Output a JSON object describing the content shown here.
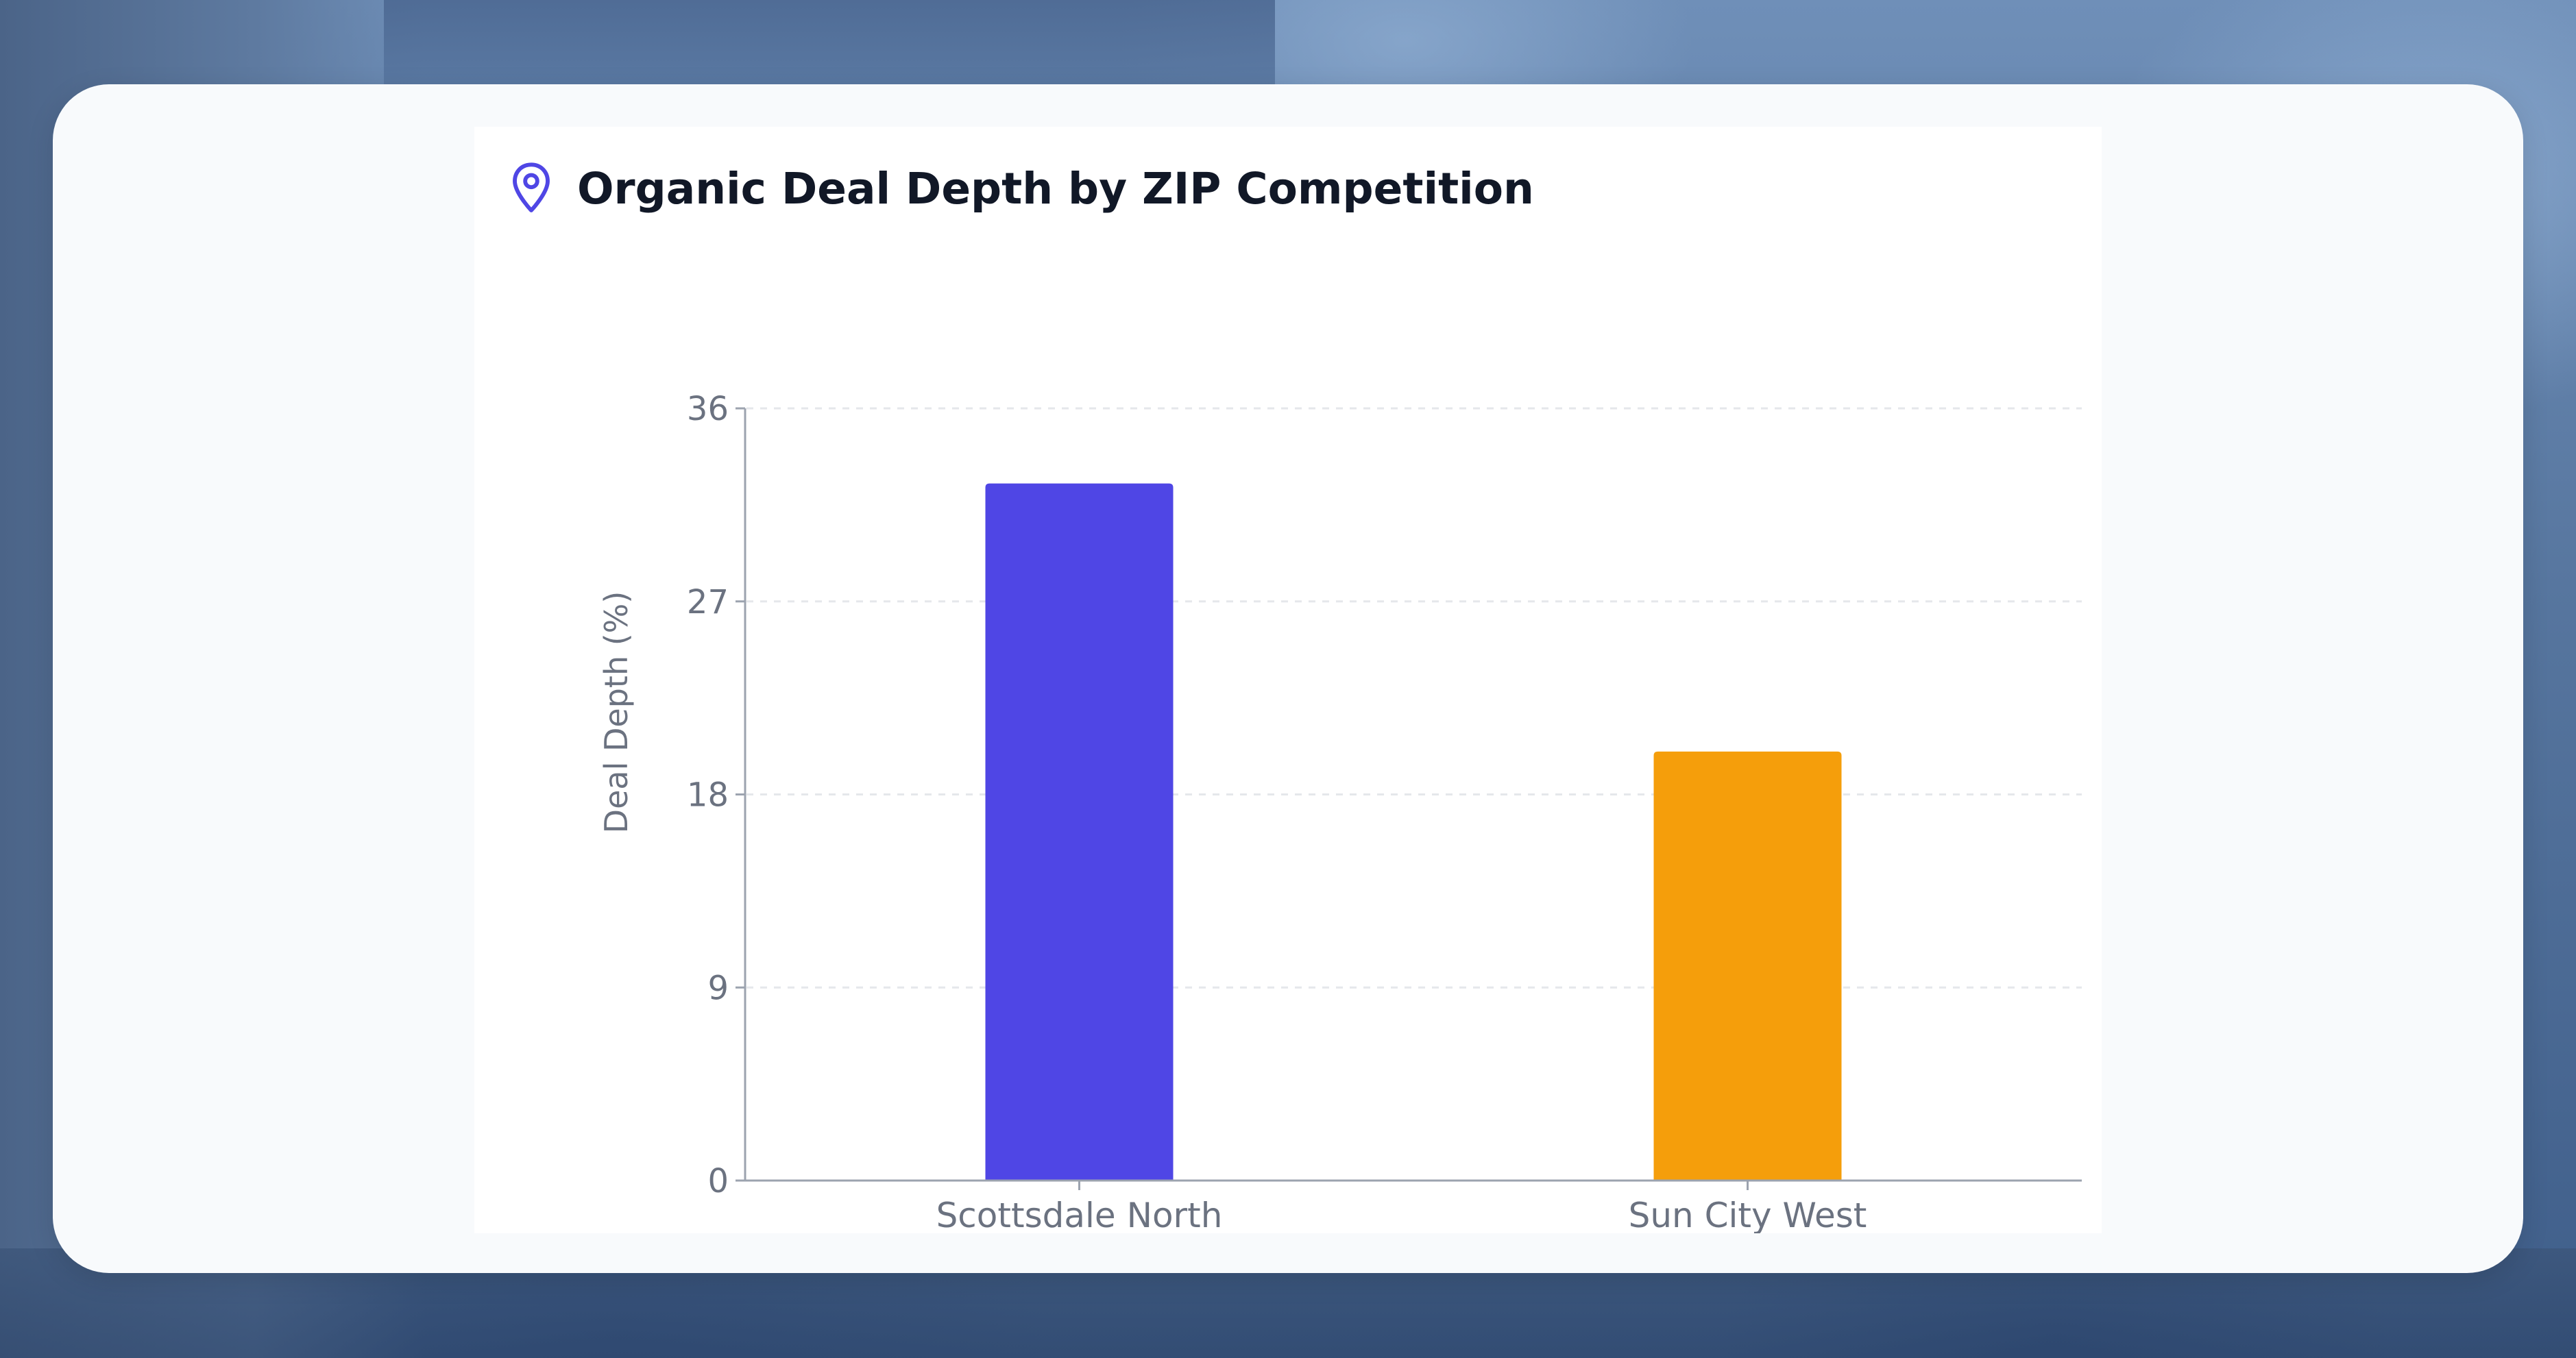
{
  "chart_data": {
    "type": "bar",
    "title": "Organic Deal Depth by ZIP Competition",
    "xlabel": "",
    "ylabel": "Deal Depth (%)",
    "ylim": [
      0,
      36
    ],
    "yticks": [
      "0",
      "9",
      "18",
      "27",
      "36"
    ],
    "categories": [
      "Scottsdale North",
      "Sun City West"
    ],
    "values": [
      32.5,
      20
    ],
    "colors": [
      "#4f46e5",
      "#f59e0b"
    ],
    "grid": true,
    "legend": "none",
    "title_icon": "map-pin-icon",
    "accent_color": "#4f46e5"
  }
}
